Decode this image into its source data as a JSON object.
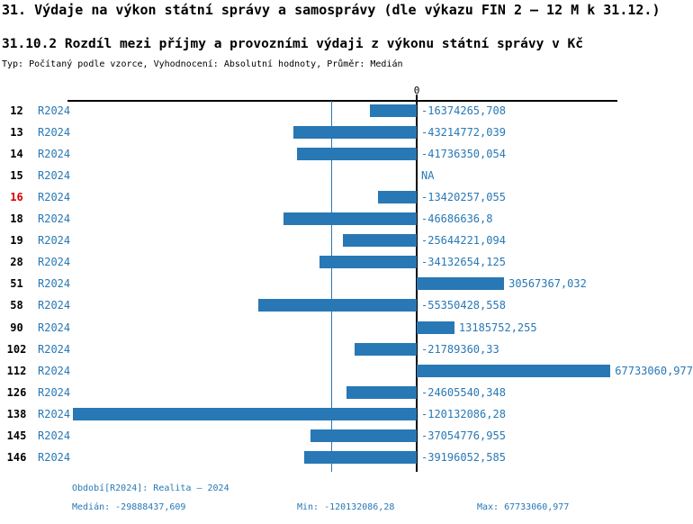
{
  "header": {
    "title": "31. Výdaje na výkon státní správy a samosprávy (dle výkazu FIN 2 – 12 M k 31.12.)",
    "subtitle": "31.10.2 Rozdíl mezi příjmy a provozními výdaji z výkonu státní správy v Kč",
    "meta": "Typ: Počítaný podle vzorce, Vyhodnocení: Absolutní hodnoty, Průměr: Medián"
  },
  "chart_data": {
    "type": "bar",
    "orientation": "horizontal",
    "axis_zero_label": "0",
    "series_name": "R2024",
    "categories": [
      "12",
      "13",
      "14",
      "15",
      "16",
      "18",
      "19",
      "28",
      "51",
      "58",
      "90",
      "102",
      "112",
      "126",
      "138",
      "145",
      "146"
    ],
    "rows": [
      {
        "label": "12",
        "series": "R2024",
        "value": -16374265.708,
        "value_text": "-16374265,708",
        "highlight": false
      },
      {
        "label": "13",
        "series": "R2024",
        "value": -43214772.039,
        "value_text": "-43214772,039",
        "highlight": false
      },
      {
        "label": "14",
        "series": "R2024",
        "value": -41736350.054,
        "value_text": "-41736350,054",
        "highlight": false
      },
      {
        "label": "15",
        "series": "R2024",
        "value": null,
        "value_text": "NA",
        "highlight": false
      },
      {
        "label": "16",
        "series": "R2024",
        "value": -13420257.055,
        "value_text": "-13420257,055",
        "highlight": true
      },
      {
        "label": "18",
        "series": "R2024",
        "value": -46686636.8,
        "value_text": "-46686636,8",
        "highlight": false
      },
      {
        "label": "19",
        "series": "R2024",
        "value": -25644221.094,
        "value_text": "-25644221,094",
        "highlight": false
      },
      {
        "label": "28",
        "series": "R2024",
        "value": -34132654.125,
        "value_text": "-34132654,125",
        "highlight": false
      },
      {
        "label": "51",
        "series": "R2024",
        "value": 30567367.032,
        "value_text": "30567367,032",
        "highlight": false
      },
      {
        "label": "58",
        "series": "R2024",
        "value": -55350428.558,
        "value_text": "-55350428,558",
        "highlight": false
      },
      {
        "label": "90",
        "series": "R2024",
        "value": 13185752.255,
        "value_text": "13185752,255",
        "highlight": false
      },
      {
        "label": "102",
        "series": "R2024",
        "value": -21789360.33,
        "value_text": "-21789360,33",
        "highlight": false
      },
      {
        "label": "112",
        "series": "R2024",
        "value": 67733060.977,
        "value_text": "67733060,977",
        "highlight": false
      },
      {
        "label": "126",
        "series": "R2024",
        "value": -24605540.348,
        "value_text": "-24605540,348",
        "highlight": false
      },
      {
        "label": "138",
        "series": "R2024",
        "value": -120132086.28,
        "value_text": "-120132086,28",
        "highlight": false
      },
      {
        "label": "145",
        "series": "R2024",
        "value": -37054776.955,
        "value_text": "-37054776,955",
        "highlight": false
      },
      {
        "label": "146",
        "series": "R2024",
        "value": -39196052.585,
        "value_text": "-39196052,585",
        "highlight": false
      }
    ],
    "median_value": -29888437.609,
    "min_value": -120132086.28,
    "max_value": 67733060.977,
    "xlim": [
      -122000000,
      70000000
    ],
    "grid": false,
    "colors": {
      "bar": "#2878b5",
      "value_text": "#2878b5",
      "series_text": "#2878b5",
      "median_line": "#2878b5",
      "row_label": "#000000",
      "highlight_row_label": "#dd0000",
      "axis": "#000000",
      "footer_text": "#2878b5"
    }
  },
  "footer": {
    "period": "Období[R2024]: Realita – 2024",
    "median": "Medián: -29888437,609",
    "min": "Min: -120132086,28",
    "max": "Max: 67733060,977"
  }
}
